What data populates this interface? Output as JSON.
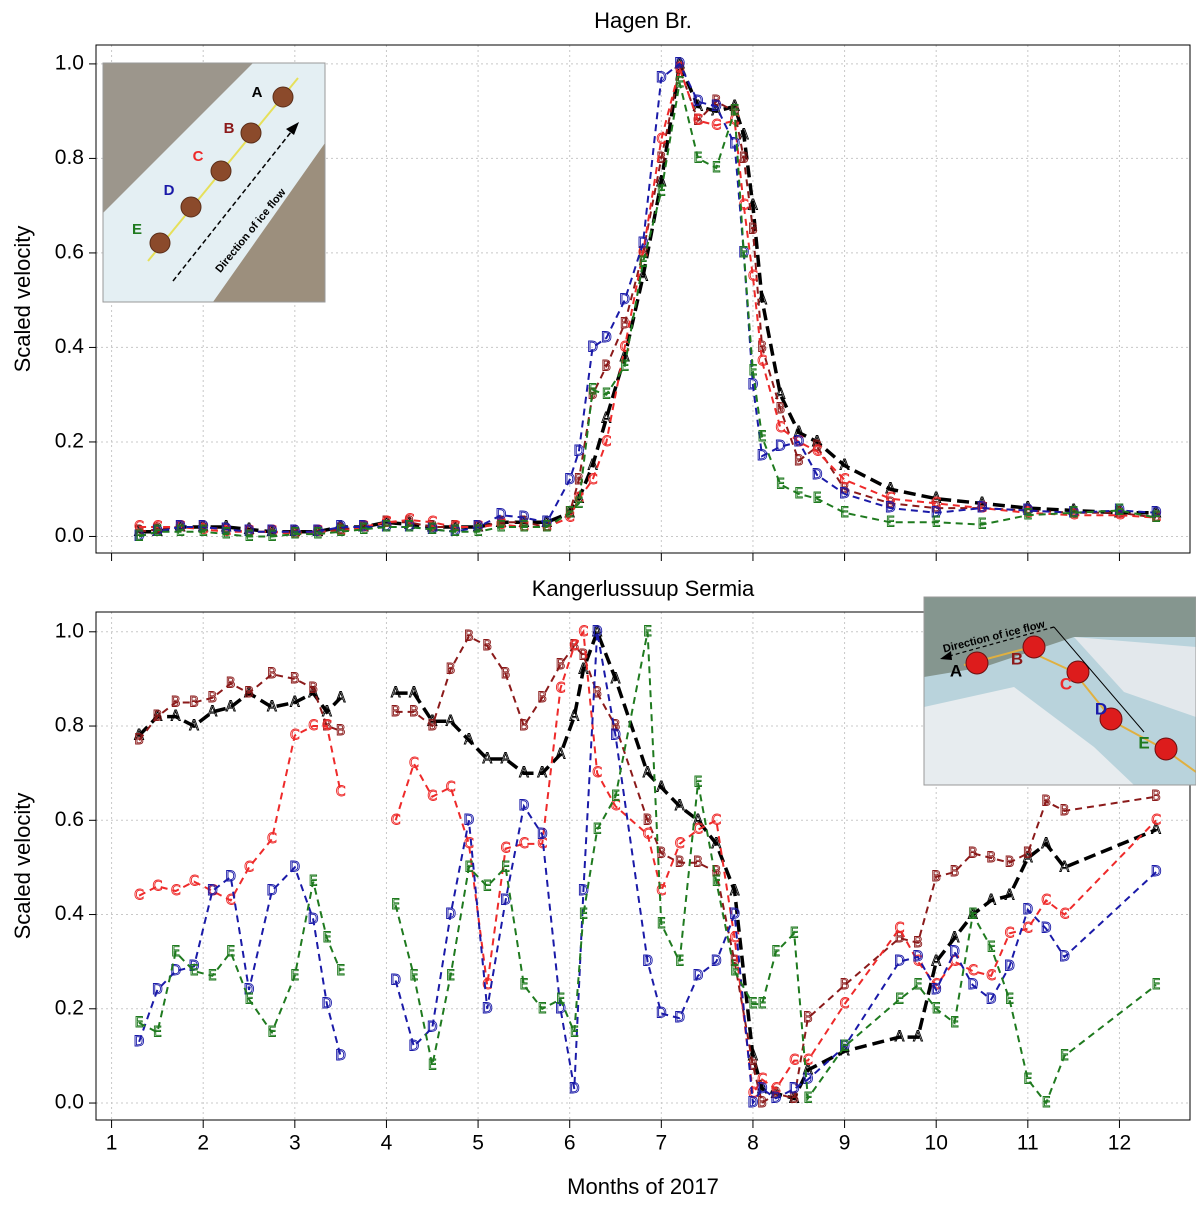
{
  "chart_data": [
    {
      "type": "line",
      "title": "Hagen Br.",
      "ylabel": "Scaled velocity",
      "xlim": [
        0.83,
        12.77
      ],
      "xticks": [
        1,
        2,
        3,
        4,
        5,
        6,
        7,
        8,
        9,
        10,
        11,
        12
      ],
      "ylim": [
        -0.035,
        1.04
      ],
      "yticks": [
        {
          "value": 0,
          "label": "0.0"
        },
        {
          "value": 0.2,
          "label": "0.2"
        },
        {
          "value": 0.4,
          "label": "0.4"
        },
        {
          "value": 0.6,
          "label": "0.6"
        },
        {
          "value": 0.8,
          "label": "0.8"
        },
        {
          "value": 1,
          "label": "1.0"
        }
      ],
      "grid": true,
      "x": [
        1.3,
        1.5,
        1.75,
        2.0,
        2.25,
        2.5,
        2.75,
        3.0,
        3.25,
        3.5,
        3.75,
        4.0,
        4.25,
        4.5,
        4.75,
        5.0,
        5.25,
        5.5,
        5.75,
        6.0,
        6.1,
        6.25,
        6.4,
        6.6,
        6.8,
        7.0,
        7.2,
        7.4,
        7.6,
        7.8,
        7.9,
        8.0,
        8.1,
        8.3,
        8.5,
        8.7,
        9.0,
        9.5,
        10.0,
        10.5,
        11.0,
        11.5,
        12.0,
        12.4
      ],
      "series": [
        {
          "name": "A",
          "color": "#000000",
          "values": [
            0.01,
            0.01,
            0.02,
            0.02,
            0.02,
            0.015,
            0.01,
            0.01,
            0.01,
            0.02,
            0.02,
            0.03,
            0.025,
            0.02,
            0.02,
            0.02,
            0.03,
            0.03,
            0.03,
            0.05,
            0.08,
            0.15,
            0.25,
            0.38,
            0.55,
            0.75,
            1.0,
            0.91,
            0.9,
            0.91,
            0.85,
            0.7,
            0.5,
            0.3,
            0.22,
            0.2,
            0.15,
            0.1,
            0.08,
            0.07,
            0.06,
            0.055,
            0.05,
            0.05
          ]
        },
        {
          "name": "B",
          "color": "#8b1a1a",
          "values": [
            0.01,
            0.015,
            0.02,
            0.02,
            0.015,
            0.01,
            0.01,
            0.01,
            0.01,
            0.015,
            0.02,
            0.03,
            0.03,
            0.02,
            0.02,
            0.02,
            0.03,
            0.03,
            0.02,
            0.05,
            0.12,
            0.3,
            0.36,
            0.45,
            0.6,
            0.8,
            0.99,
            0.88,
            0.92,
            0.9,
            0.8,
            0.65,
            0.4,
            0.27,
            0.16,
            0.19,
            0.1,
            0.07,
            0.06,
            0.06,
            0.055,
            0.05,
            0.05,
            0.04
          ]
        },
        {
          "name": "C",
          "color": "#ee2a2a",
          "values": [
            0.02,
            0.02,
            0.02,
            0.015,
            0.01,
            0.01,
            0.01,
            0.005,
            0.01,
            0.01,
            0.02,
            0.03,
            0.035,
            0.03,
            0.02,
            0.02,
            0.025,
            0.02,
            0.02,
            0.04,
            0.08,
            0.12,
            0.2,
            0.4,
            0.6,
            0.84,
            0.99,
            0.88,
            0.87,
            0.88,
            0.7,
            0.55,
            0.37,
            0.23,
            0.2,
            0.18,
            0.12,
            0.08,
            0.07,
            0.06,
            0.05,
            0.045,
            0.045,
            0.04
          ]
        },
        {
          "name": "D",
          "color": "#1a1aa8",
          "values": [
            0,
            0.01,
            0.02,
            0.02,
            0.015,
            0.01,
            0.01,
            0.01,
            0.01,
            0.02,
            0.02,
            0.02,
            0.02,
            0.015,
            0.01,
            0.02,
            0.045,
            0.04,
            0.03,
            0.12,
            0.18,
            0.4,
            0.42,
            0.5,
            0.62,
            0.97,
            1.0,
            0.92,
            0.91,
            0.83,
            0.6,
            0.32,
            0.17,
            0.19,
            0.2,
            0.13,
            0.09,
            0.06,
            0.05,
            0.06,
            0.055,
            0.05,
            0.055,
            0.05
          ]
        },
        {
          "name": "E",
          "color": "#1f7a1f",
          "values": [
            0,
            0.01,
            0.01,
            0.01,
            0.005,
            0,
            0,
            0.005,
            0.005,
            0.01,
            0.015,
            0.02,
            0.02,
            0.015,
            0.01,
            0.01,
            0.02,
            0.02,
            0.02,
            0.05,
            0.07,
            0.31,
            0.3,
            0.36,
            0.58,
            0.73,
            0.96,
            0.8,
            0.78,
            0.9,
            0.6,
            0.35,
            0.21,
            0.11,
            0.09,
            0.08,
            0.05,
            0.03,
            0.03,
            0.025,
            0.045,
            0.05,
            0.055,
            0.04
          ]
        }
      ],
      "inset": {
        "labels": [
          "A",
          "B",
          "C",
          "D",
          "E"
        ],
        "arrow_label": "Direction of ice flow"
      }
    },
    {
      "type": "line",
      "title": "Kangerlussuup Sermia",
      "ylabel": "Scaled velocity",
      "xlabel": "Months of 2017",
      "xlim": [
        0.83,
        12.77
      ],
      "xticks": [
        1,
        2,
        3,
        4,
        5,
        6,
        7,
        8,
        9,
        10,
        11,
        12
      ],
      "ylim": [
        -0.036,
        1.042
      ],
      "yticks": [
        {
          "value": 0,
          "label": "0.0"
        },
        {
          "value": 0.2,
          "label": "0.2"
        },
        {
          "value": 0.4,
          "label": "0.4"
        },
        {
          "value": 0.6,
          "label": "0.6"
        },
        {
          "value": 0.8,
          "label": "0.8"
        },
        {
          "value": 1,
          "label": "1.0"
        }
      ],
      "grid": true,
      "x": [
        1.3,
        1.5,
        1.7,
        1.9,
        2.1,
        2.3,
        2.5,
        2.75,
        3.0,
        3.2,
        3.35,
        3.5,
        3.75,
        4.1,
        4.3,
        4.5,
        4.7,
        4.9,
        5.1,
        5.3,
        5.5,
        5.7,
        5.9,
        6.05,
        6.15,
        6.3,
        6.5,
        6.85,
        7.0,
        7.2,
        7.4,
        7.6,
        7.8,
        8.0,
        8.1,
        8.25,
        8.45,
        8.6,
        9.0,
        9.6,
        9.8,
        10.0,
        10.2,
        10.4,
        10.6,
        10.8,
        11.0,
        11.2,
        11.4,
        12.4
      ],
      "series": [
        {
          "name": "A",
          "color": "#000000",
          "values": [
            0.78,
            0.82,
            0.82,
            0.8,
            0.83,
            0.84,
            0.87,
            0.84,
            0.85,
            0.87,
            0.83,
            0.86,
            null,
            0.87,
            0.87,
            0.81,
            0.81,
            0.77,
            0.73,
            0.73,
            0.7,
            0.7,
            0.74,
            0.82,
            0.92,
            1.0,
            0.9,
            0.7,
            0.67,
            0.63,
            0.6,
            0.55,
            0.45,
            0.1,
            0.03,
            0.02,
            0.01,
            0.07,
            0.11,
            0.14,
            0.14,
            0.3,
            0.35,
            0.4,
            0.43,
            0.44,
            0.52,
            0.55,
            0.5,
            0.58
          ]
        },
        {
          "name": "B",
          "color": "#8b1a1a",
          "values": [
            0.77,
            0.82,
            0.85,
            0.85,
            0.86,
            0.89,
            0.87,
            0.91,
            0.9,
            0.88,
            0.8,
            0.79,
            null,
            0.83,
            0.83,
            0.8,
            0.92,
            0.99,
            0.97,
            0.91,
            0.8,
            0.86,
            0.93,
            0.97,
            0.95,
            0.87,
            0.8,
            0.6,
            0.53,
            0.51,
            0.51,
            0.49,
            0.3,
            0.08,
            0,
            0.02,
            0.01,
            0.18,
            0.25,
            0.35,
            0.34,
            0.48,
            0.49,
            0.53,
            0.52,
            0.51,
            0.53,
            0.64,
            0.62,
            0.65
          ]
        },
        {
          "name": "C",
          "color": "#ee2a2a",
          "values": [
            0.44,
            0.46,
            0.45,
            0.47,
            0.45,
            0.43,
            0.5,
            0.56,
            0.78,
            0.8,
            0.8,
            0.66,
            null,
            0.6,
            0.72,
            0.65,
            0.67,
            0.55,
            0.25,
            0.54,
            0.55,
            0.55,
            0.88,
            0.97,
            1.0,
            0.7,
            0.63,
            0.57,
            0.45,
            0.55,
            0.58,
            0.6,
            0.35,
            0.02,
            0.05,
            0.03,
            0.09,
            0.09,
            0.21,
            0.37,
            0.3,
            0.25,
            0.3,
            0.28,
            0.27,
            0.36,
            0.37,
            0.43,
            0.4,
            0.6
          ]
        },
        {
          "name": "D",
          "color": "#1a1aa8",
          "values": [
            0.13,
            0.24,
            0.28,
            0.29,
            0.45,
            0.48,
            0.24,
            0.45,
            0.5,
            0.39,
            0.21,
            0.1,
            null,
            0.26,
            0.12,
            0.16,
            0.4,
            0.6,
            0.2,
            0.43,
            0.63,
            0.57,
            0.2,
            0.03,
            0.45,
            1.0,
            0.78,
            0.3,
            0.19,
            0.18,
            0.27,
            0.3,
            0.4,
            0,
            0.03,
            0.01,
            0.03,
            0.05,
            0.12,
            0.3,
            0.31,
            0.24,
            0.32,
            0.25,
            0.22,
            0.29,
            0.41,
            0.37,
            0.31,
            0.49
          ]
        },
        {
          "name": "E",
          "color": "#1f7a1f",
          "values": [
            0.17,
            0.15,
            0.32,
            0.28,
            0.27,
            0.32,
            0.22,
            0.15,
            0.27,
            0.47,
            0.35,
            0.28,
            null,
            0.42,
            0.27,
            0.08,
            0.27,
            0.5,
            0.46,
            0.5,
            0.25,
            0.2,
            0.22,
            0.15,
            0.4,
            0.58,
            0.65,
            1.0,
            0.38,
            0.3,
            0.68,
            0.47,
            0.28,
            0.21,
            0.21,
            0.32,
            0.36,
            0.01,
            0.12,
            0.22,
            0.25,
            0.2,
            0.17,
            0.4,
            0.33,
            0.22,
            0.05,
            0,
            0.1,
            0.25
          ]
        }
      ],
      "inset": {
        "labels": [
          "A",
          "B",
          "C",
          "D",
          "E"
        ],
        "arrow_label": "Direction of ice flow"
      }
    }
  ]
}
